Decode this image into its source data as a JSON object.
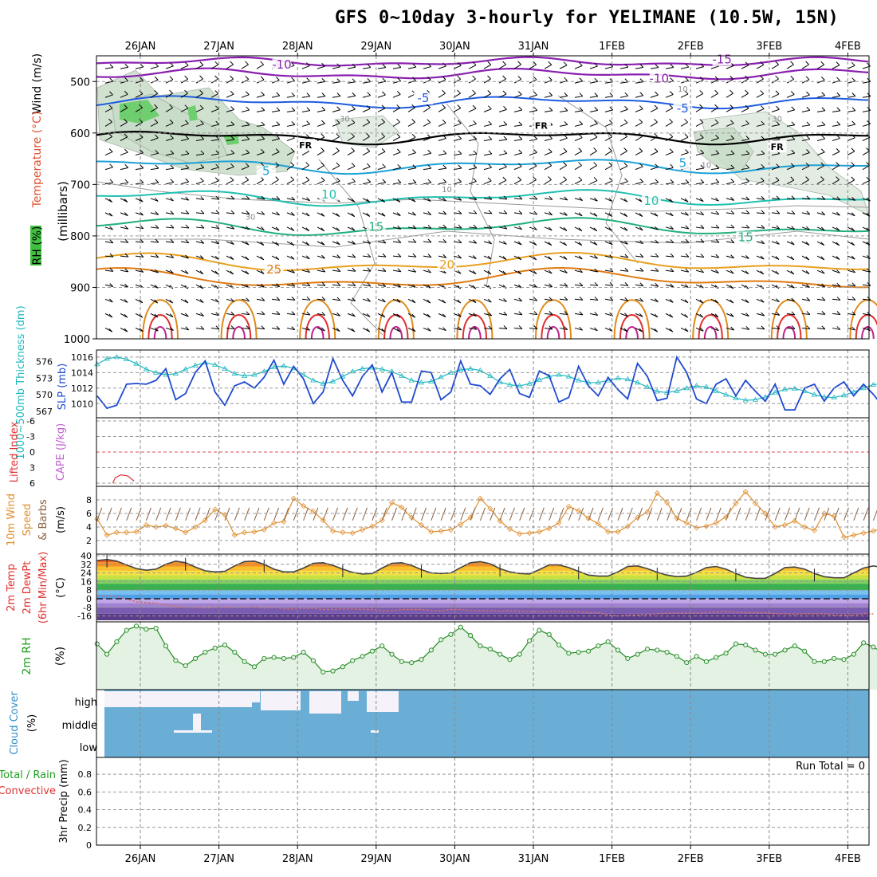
{
  "title": "GFS 0~10day 3-hourly for YELIMANE (10.5W, 15N)",
  "chart_data": [
    {
      "type": "line",
      "panel": "upper-air",
      "x_dates": [
        "26JAN",
        "27JAN",
        "28JAN",
        "29JAN",
        "30JAN",
        "31JAN",
        "1FEB",
        "2FEB",
        "3FEB",
        "4FEB"
      ],
      "ylabel_parts": {
        "rh": "RH (%)",
        "temp": "Temperature (°C)",
        "wind": "Wind (m/s)",
        "pressure": "(millibars)"
      },
      "y_ticks": [
        500,
        600,
        700,
        800,
        900,
        1000
      ],
      "ylim": [
        1000,
        450
      ],
      "isotherm_labels": [
        {
          "text": "-15",
          "x_day": 7.4,
          "p": 465
        },
        {
          "text": "-10",
          "x_day": 1.8,
          "p": 475
        },
        {
          "text": "-10",
          "x_day": 6.6,
          "p": 502
        },
        {
          "text": "-5",
          "x_day": 3.6,
          "p": 540
        },
        {
          "text": "-5",
          "x_day": 6.9,
          "p": 560
        },
        {
          "text": "FR",
          "x_day": 2.1,
          "p": 630
        },
        {
          "text": "FR",
          "x_day": 5.1,
          "p": 592
        },
        {
          "text": "FR",
          "x_day": 8.1,
          "p": 633
        },
        {
          "text": "5",
          "x_day": 1.6,
          "p": 682
        },
        {
          "text": "5",
          "x_day": 6.9,
          "p": 666
        },
        {
          "text": "10",
          "x_day": 2.4,
          "p": 727
        },
        {
          "text": "10",
          "x_day": 6.5,
          "p": 740
        },
        {
          "text": "15",
          "x_day": 3.0,
          "p": 790
        },
        {
          "text": "15",
          "x_day": 7.7,
          "p": 810
        },
        {
          "text": "20",
          "x_day": 3.9,
          "p": 864
        },
        {
          "text": "25",
          "x_day": 1.7,
          "p": 873
        }
      ],
      "rh_labels": [
        {
          "text": "30",
          "x_day": 2.6,
          "p": 578
        },
        {
          "text": "10",
          "x_day": 6.9,
          "p": 520
        },
        {
          "text": "10",
          "x_day": 7.2,
          "p": 668
        },
        {
          "text": "10",
          "x_day": 3.9,
          "p": 715
        },
        {
          "text": "30",
          "x_day": 1.4,
          "p": 768
        },
        {
          "text": "30",
          "x_day": 8.1,
          "p": 578
        }
      ]
    },
    {
      "type": "line",
      "panel": "thickness-slp",
      "ylabel_left": "1000~500mb Thickness (dm)",
      "ylabel_right": "SLP (mb)",
      "left_ticks": [
        567,
        570,
        573,
        576
      ],
      "right_ticks": [
        1010,
        1012,
        1014,
        1016
      ],
      "ylim_slp": [
        1008.5,
        1016.5
      ],
      "slp": [
        1011,
        1009.4,
        1009.8,
        1012.5,
        1012.6,
        1012.5,
        1013,
        1014.5,
        1010.5,
        1011.3,
        1014,
        1015.5,
        1011.5,
        1009.8,
        1012.3,
        1012.8,
        1012,
        1013.4,
        1015.6,
        1012.5,
        1014.8,
        1013.2,
        1010,
        1011.5,
        1015.8,
        1013,
        1011,
        1013.5,
        1015,
        1011.5,
        1014,
        1010.2,
        1010.2,
        1014.2,
        1014,
        1010.5,
        1011.5,
        1015.5,
        1012.5,
        1012.3,
        1011.2,
        1013.2,
        1014.4,
        1011.3,
        1010.8,
        1014.2,
        1013.6,
        1010.2,
        1010.8,
        1014.8,
        1012.3,
        1011,
        1013.4,
        1011.8,
        1010.6,
        1015.2,
        1013.5,
        1010.4,
        1010.7,
        1016,
        1014,
        1010.6,
        1010,
        1012.5,
        1013.2,
        1011,
        1013,
        1011.6,
        1010.3,
        1012.5,
        1009.2,
        1009.2,
        1012,
        1012.5,
        1010.3,
        1012,
        1012.8,
        1011,
        1012.5,
        1011.2,
        1009.6,
        1012.5,
        1012.8,
        1012,
        1011.2,
        1010.6
      ],
      "thickness": [
        575.5,
        576.5,
        576.8,
        576.4,
        575.6,
        574.6,
        574,
        573.6,
        573.8,
        574.6,
        575.3,
        575.8,
        575.4,
        574.7,
        573.8,
        573.4,
        573.6,
        574.2,
        575,
        575.2,
        574.8,
        573.6,
        572.6,
        572,
        572.4,
        573.3,
        574.2,
        574.7,
        574.9,
        574.6,
        574.2,
        573.4,
        572.6,
        572.2,
        572.4,
        573.2,
        574,
        574.5,
        574.7,
        574.4,
        573.4,
        572.3,
        571.8,
        571.6,
        572,
        572.7,
        573.3,
        573.6,
        573.3,
        572.6,
        572.2,
        572.2,
        572.6,
        573,
        572.8,
        572.2,
        571.4,
        570.6,
        570.4,
        570.7,
        571.2,
        571.6,
        571.4,
        570.7,
        570,
        569.4,
        569,
        569.1,
        569.6,
        570.4,
        571,
        571.1,
        570.7,
        570,
        569.6,
        569.5,
        569.9,
        570.5,
        571.2,
        571.8,
        572.1,
        571.8,
        571.2,
        570.6,
        570.5,
        570.8
      ]
    },
    {
      "type": "line",
      "panel": "stability",
      "ylabel_left": "Lifted Index",
      "ylabel_right": "CAPE (J/kg)",
      "left_ticks": [
        "-6",
        "-3",
        "0",
        "3",
        "6"
      ],
      "li_segment": [
        {
          "x_day": -0.35,
          "li": 6
        },
        {
          "x_day": -0.32,
          "li": 5
        },
        {
          "x_day": -0.25,
          "li": 4.4
        },
        {
          "x_day": -0.16,
          "li": 4.6
        },
        {
          "x_day": -0.08,
          "li": 5.6
        }
      ]
    },
    {
      "type": "line",
      "panel": "10m-wind",
      "ylabel": "10m Wind Speed & Barbs (m/s)",
      "ylim": [
        0,
        10
      ],
      "y_ticks": [
        2,
        4,
        6,
        8
      ],
      "speed": [
        5.2,
        2.8,
        3.2,
        3.2,
        3.3,
        4.3,
        4.0,
        4.2,
        3.8,
        3.2,
        4.0,
        5.0,
        6.6,
        5.8,
        2.8,
        3.2,
        3.3,
        3.6,
        4.6,
        4.8,
        8.2,
        7.1,
        6.3,
        5.0,
        3.4,
        3.2,
        3.1,
        3.6,
        4.1,
        5.0,
        7.6,
        6.9,
        5.4,
        4.3,
        3.3,
        3.4,
        3.6,
        4.4,
        5.4,
        8.2,
        6.7,
        4.9,
        3.7,
        3.0,
        3.1,
        3.3,
        3.8,
        4.6,
        7.0,
        6.4,
        5.3,
        4.5,
        3.3,
        3.3,
        4.1,
        5.4,
        6.2,
        9.0,
        7.6,
        5.3,
        4.6,
        3.9,
        4.1,
        4.6,
        5.5,
        7.5,
        9.2,
        7.5,
        6.0,
        4.0,
        4.3,
        4.9,
        4.0,
        3.5,
        6.0,
        5.6,
        2.5,
        2.8,
        3.1,
        3.4,
        3.9,
        3.5,
        2.8,
        1.2,
        3.2,
        2.6,
        2.2,
        2.5,
        3.3,
        3.6
      ],
      "barb_band": 5.9
    },
    {
      "type": "area",
      "panel": "2m-temp",
      "ylabel": "2m Temp 2m DewPt (6hr Min/Max) (°C)",
      "y_ticks": [
        40,
        32,
        24,
        16,
        8,
        0,
        -8,
        -16
      ],
      "ylim": [
        -20,
        40
      ],
      "temp": [
        35.5,
        36.5,
        35,
        31.5,
        28,
        26.5,
        27.5,
        32,
        35,
        33.5,
        29.5,
        26,
        25,
        25.5,
        30.5,
        34.5,
        35,
        32,
        27.5,
        25,
        25,
        28.5,
        33,
        33.5,
        31,
        27.5,
        24.5,
        23,
        23.5,
        28.5,
        33,
        33.5,
        31,
        27,
        24,
        23.5,
        24,
        29,
        33.5,
        34.5,
        32.5,
        28,
        25,
        23.5,
        23,
        27,
        31.5,
        31.5,
        29,
        25.5,
        22,
        21,
        21,
        25,
        30,
        30.5,
        28,
        24.5,
        22,
        20.5,
        21,
        24.5,
        29,
        30,
        27.5,
        23.5,
        20,
        19,
        19,
        23.5,
        29,
        29.5,
        27.5,
        23.5,
        20.5,
        19.5,
        19.5,
        24,
        28.5,
        30.5,
        29,
        25.5,
        22,
        20.5,
        20,
        19
      ],
      "dewpoint": [
        2.5,
        2.5,
        2,
        0,
        -3,
        -3.5,
        -4,
        -6,
        -7,
        -8,
        -8,
        -8.5,
        -8,
        -8,
        -8,
        -8,
        -7.5,
        -8.5,
        -8,
        -9.5,
        -9.5,
        -9,
        -9,
        -10,
        -10,
        -9.5,
        -9.5,
        -10,
        -10,
        -11,
        -11,
        -10,
        -10,
        -10,
        -11,
        -11,
        -10,
        -10,
        -11,
        -11,
        -11,
        -11.5,
        -11,
        -11.5,
        -12,
        -12,
        -12,
        -11.5,
        -12,
        -12,
        -13,
        -13,
        -15,
        -16,
        -15,
        -15,
        -14.5,
        -14,
        -13.5,
        -13.5,
        -13.5,
        -13.5,
        -13,
        -12.5,
        -12,
        -12.5,
        -13,
        -13,
        -13,
        -14,
        -14,
        -14.5,
        -14,
        -14,
        -14,
        -15,
        -15,
        -15,
        -14,
        -14
      ]
    },
    {
      "type": "line",
      "panel": "2m-rh",
      "ylabel": "2m RH (%)",
      "rh": [
        32,
        22,
        34,
        45,
        49,
        46,
        47,
        30,
        16,
        11,
        18,
        24,
        28,
        31,
        24,
        15,
        10,
        18,
        19,
        18,
        19,
        24,
        16,
        5,
        6,
        10,
        16,
        20,
        25,
        30,
        22,
        15,
        14,
        17,
        26,
        36,
        41,
        48,
        40,
        30,
        27,
        22,
        17,
        22,
        35,
        45,
        41,
        31,
        23,
        24,
        25,
        30,
        34,
        26,
        18,
        22,
        27,
        26,
        24,
        20,
        14,
        20,
        15,
        19,
        23,
        32,
        31,
        26,
        22,
        22,
        26,
        30,
        25,
        15,
        15,
        18,
        17,
        22,
        33,
        29,
        23
      ]
    },
    {
      "type": "bar",
      "panel": "cloud-cover",
      "ylabel": "Cloud Cover (%)",
      "levels": [
        "high",
        "middle",
        "low"
      ]
    },
    {
      "type": "bar",
      "panel": "precip",
      "ylabel": "3hr Precip (mm)",
      "ylabel_left_extra": [
        "Total / Rain",
        "Convective"
      ],
      "y_ticks": [
        "0",
        "0.2",
        "0.4",
        "0.6",
        "0.8"
      ],
      "ylim": [
        0,
        0.9
      ],
      "run_total": "Run Total = 0",
      "values": []
    }
  ]
}
